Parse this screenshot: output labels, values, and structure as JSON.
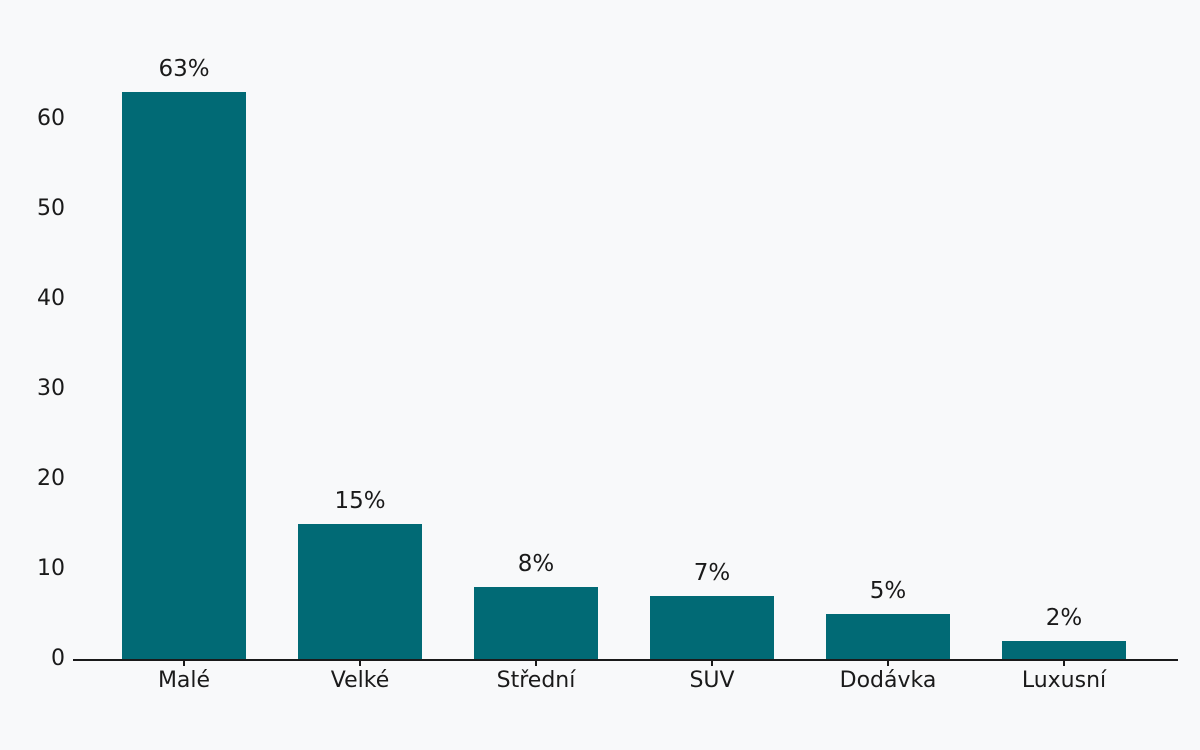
{
  "colors": {
    "background": "#f8f9fa",
    "bar": "#016a75",
    "text": "#1a1a1a",
    "axis": "#1a1a1a"
  },
  "chart_data": {
    "type": "bar",
    "categories": [
      "Malé",
      "Velké",
      "Střední",
      "SUV",
      "Dodávka",
      "Luxusní"
    ],
    "values": [
      63,
      15,
      8,
      7,
      5,
      2
    ],
    "value_labels": [
      "63%",
      "15%",
      "8%",
      "7%",
      "5%",
      "2%"
    ],
    "title": "",
    "xlabel": "",
    "ylabel": "",
    "ylim": [
      0,
      66
    ],
    "yticks": [
      0,
      10,
      20,
      30,
      40,
      50,
      60
    ],
    "grid": false,
    "legend": null,
    "bar_color": "#016a75"
  }
}
